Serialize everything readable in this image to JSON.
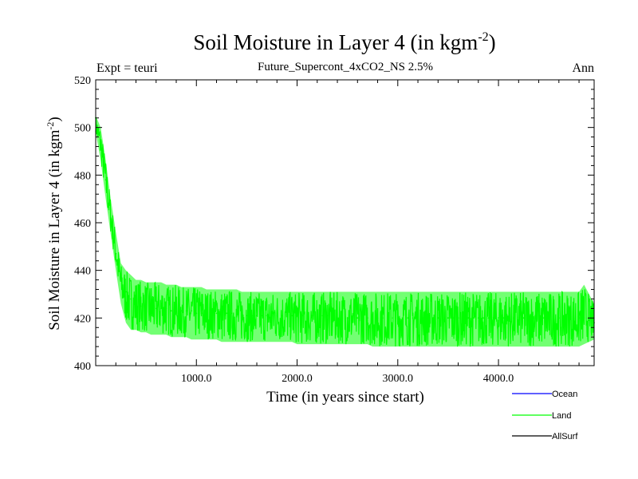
{
  "chart_data": {
    "type": "line",
    "title": "Soil Moisture in Layer 4 (in kgm",
    "title_sup": "-2",
    "title_close": ")",
    "subtitle": "Future_Supercont_4xCO2_NS 2.5%",
    "left_note": "Expt = teuri",
    "right_note": "Ann",
    "xlabel": "Time (in years since start)",
    "ylabel": "Soil Moisture in Layer 4 (in kgm",
    "ylabel_sup": "-2",
    "ylabel_close": ")",
    "xlim": [
      0,
      4950
    ],
    "ylim": [
      400,
      520
    ],
    "x_ticks": [
      1000,
      2000,
      3000,
      4000
    ],
    "x_tick_labels": [
      "1000.0",
      "2000.0",
      "3000.0",
      "4000.0"
    ],
    "y_ticks": [
      400,
      420,
      440,
      460,
      480,
      500,
      520
    ],
    "y_tick_labels": [
      "400",
      "420",
      "440",
      "460",
      "480",
      "500",
      "520"
    ],
    "grid": false,
    "legend_position": "bottom-right",
    "series": [
      {
        "name": "Ocean",
        "color": "#0000ff",
        "values": []
      },
      {
        "name": "Land",
        "color": "#00ff00",
        "x_start": 0,
        "x_step": 50,
        "values": [
          504,
          493,
          478,
          462,
          447,
          436,
          431,
          428,
          426,
          425,
          425,
          424,
          424,
          424,
          424,
          423,
          423,
          423,
          423,
          423,
          422,
          422,
          422,
          422,
          422,
          422,
          422,
          422,
          421,
          421,
          421,
          421,
          421,
          421,
          421,
          421,
          421,
          421,
          421,
          421,
          421,
          421,
          421,
          421,
          421,
          421,
          421,
          421,
          420,
          420,
          420,
          420,
          420,
          420,
          420,
          420,
          420,
          420,
          420,
          420,
          420,
          420,
          420,
          420,
          420,
          420,
          420,
          420,
          420,
          420,
          420,
          420,
          420,
          420,
          420,
          420,
          420,
          420,
          420,
          420,
          420,
          420,
          420,
          420,
          420,
          420,
          420,
          420,
          420,
          420,
          420,
          420,
          420,
          420,
          420,
          420,
          420,
          420,
          419,
          418
        ],
        "band_low": [
          498,
          486,
          470,
          455,
          440,
          426,
          418,
          415,
          415,
          414,
          414,
          413,
          413,
          413,
          413,
          412,
          412,
          412,
          412,
          411,
          411,
          411,
          411,
          411,
          411,
          410,
          410,
          410,
          410,
          410,
          410,
          410,
          410,
          410,
          410,
          410,
          410,
          410,
          410,
          410,
          409,
          409,
          409,
          409,
          409,
          409,
          409,
          409,
          409,
          409,
          409,
          409,
          409,
          409,
          409,
          408,
          408,
          408,
          408,
          408,
          408,
          408,
          408,
          408,
          408,
          408,
          408,
          408,
          408,
          408,
          408,
          408,
          408,
          408,
          408,
          408,
          408,
          408,
          408,
          408,
          408,
          408,
          408,
          408,
          408,
          408,
          408,
          408,
          408,
          408,
          408,
          408,
          408,
          408,
          408,
          408,
          408,
          409,
          410,
          411
        ],
        "band_high": [
          505,
          500,
          486,
          470,
          456,
          443,
          440,
          438,
          436,
          436,
          435,
          435,
          435,
          435,
          434,
          434,
          434,
          433,
          433,
          433,
          433,
          433,
          432,
          432,
          432,
          432,
          432,
          432,
          432,
          431,
          431,
          431,
          431,
          431,
          431,
          431,
          431,
          431,
          431,
          431,
          431,
          431,
          431,
          431,
          431,
          431,
          431,
          431,
          431,
          431,
          431,
          431,
          431,
          431,
          431,
          431,
          431,
          431,
          431,
          431,
          431,
          431,
          431,
          431,
          431,
          431,
          431,
          431,
          431,
          431,
          431,
          431,
          431,
          431,
          431,
          431,
          431,
          431,
          431,
          431,
          431,
          431,
          431,
          431,
          431,
          431,
          431,
          431,
          431,
          431,
          431,
          431,
          431,
          431,
          431,
          431,
          431,
          434,
          430,
          426
        ]
      },
      {
        "name": "AllSurf",
        "color": "#000000",
        "values": []
      }
    ]
  }
}
